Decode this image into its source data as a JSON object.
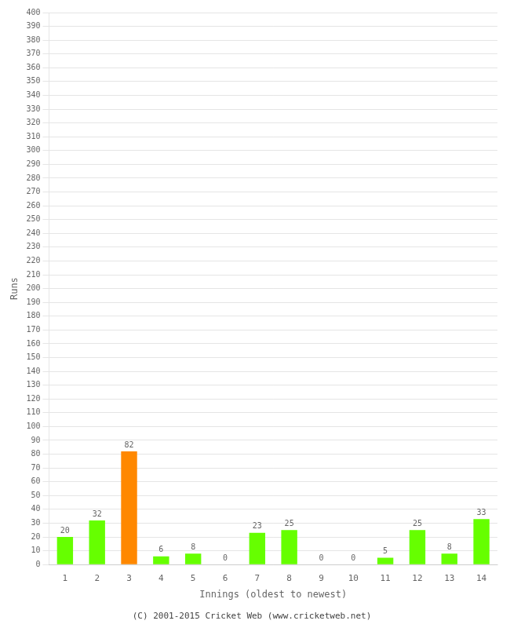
{
  "chart_data": {
    "type": "bar",
    "xlabel": "Innings (oldest to newest)",
    "ylabel": "Runs",
    "categories": [
      1,
      2,
      3,
      4,
      5,
      6,
      7,
      8,
      9,
      10,
      11,
      12,
      13,
      14
    ],
    "values": [
      20,
      32,
      82,
      6,
      8,
      0,
      23,
      25,
      0,
      0,
      5,
      25,
      8,
      33
    ],
    "colors": [
      "#66ff00",
      "#66ff00",
      "#ff8800",
      "#66ff00",
      "#66ff00",
      "#66ff00",
      "#66ff00",
      "#66ff00",
      "#66ff00",
      "#66ff00",
      "#66ff00",
      "#66ff00",
      "#66ff00",
      "#66ff00"
    ],
    "ylim": [
      0,
      400
    ],
    "yticks": [
      0,
      10,
      20,
      30,
      40,
      50,
      60,
      70,
      80,
      90,
      100,
      110,
      120,
      130,
      140,
      150,
      160,
      170,
      180,
      190,
      200,
      210,
      220,
      230,
      240,
      250,
      260,
      270,
      280,
      290,
      300,
      310,
      320,
      330,
      340,
      350,
      360,
      370,
      380,
      390,
      400
    ],
    "grid": true,
    "data_labels": true,
    "footer": "(C) 2001-2015 Cricket Web (www.cricketweb.net)"
  }
}
